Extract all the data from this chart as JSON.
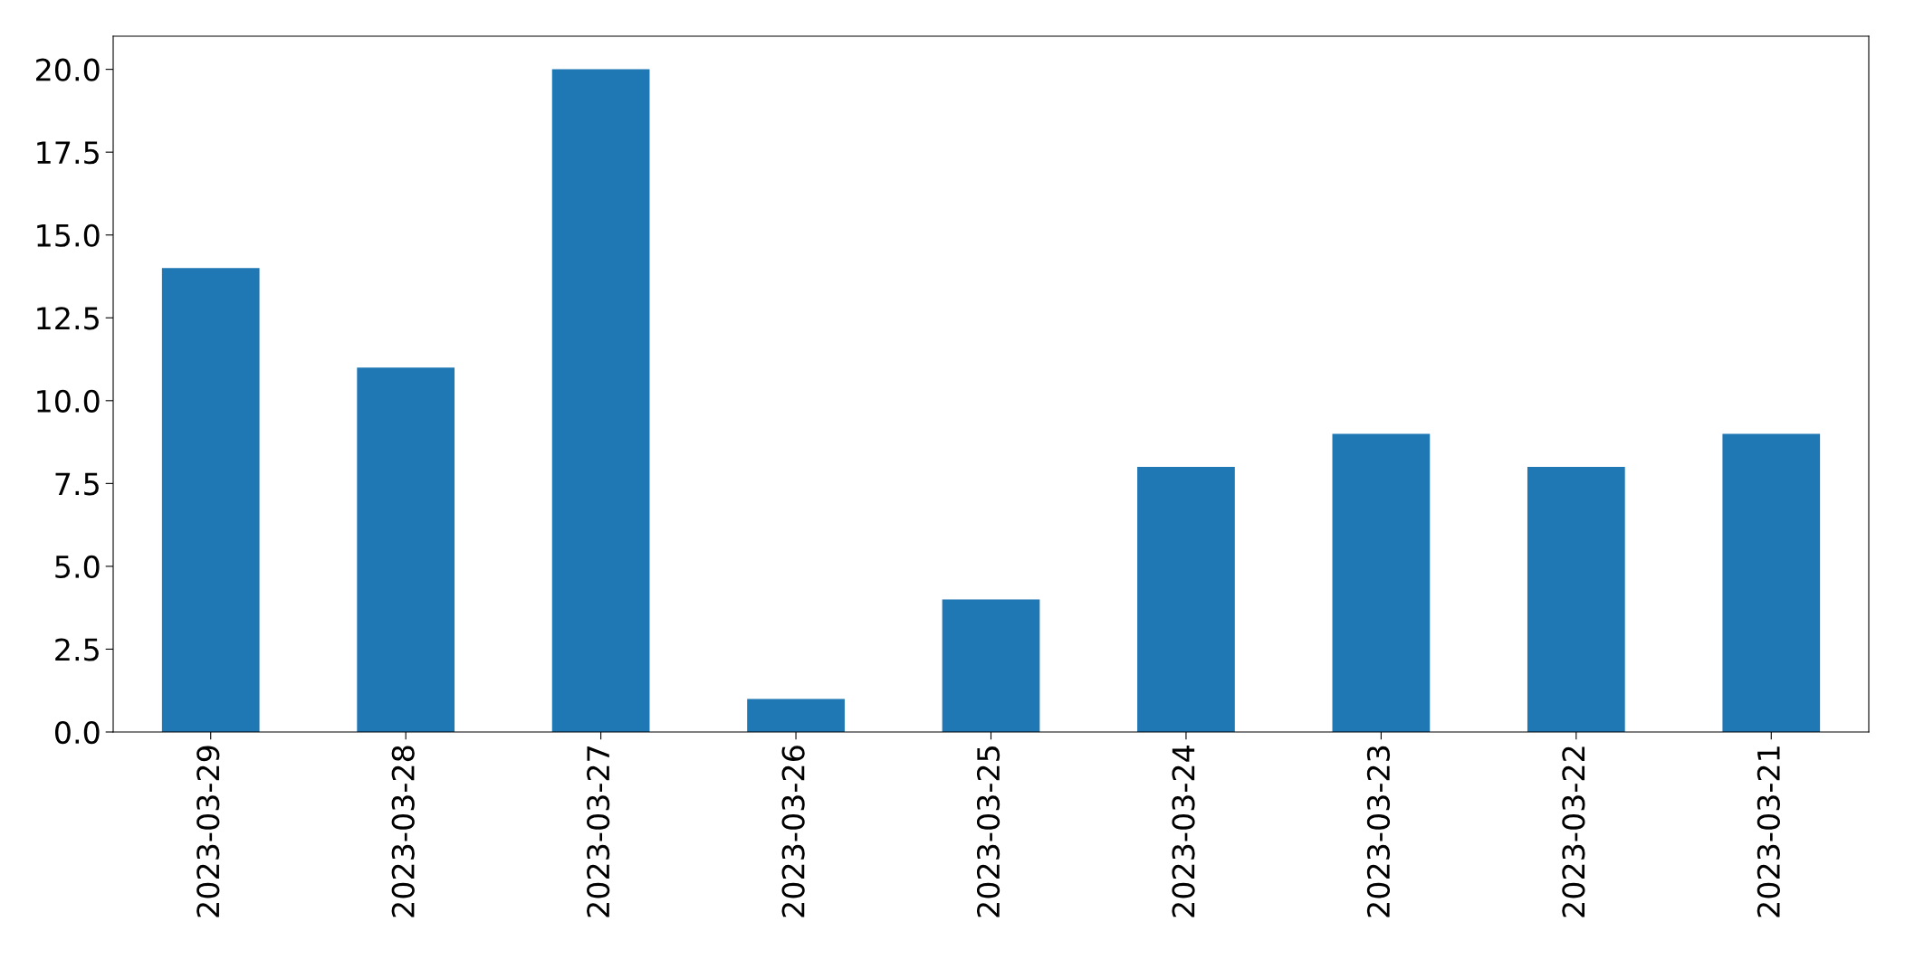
{
  "chart_data": {
    "type": "bar",
    "categories": [
      "2023-03-29",
      "2023-03-28",
      "2023-03-27",
      "2023-03-26",
      "2023-03-25",
      "2023-03-24",
      "2023-03-23",
      "2023-03-22",
      "2023-03-21"
    ],
    "values": [
      14,
      11,
      20,
      1,
      4,
      8,
      9,
      8,
      9
    ],
    "color": "#1f77b4",
    "ylim": [
      0,
      21
    ],
    "yticks": [
      {
        "value": 0,
        "label": "0.0"
      },
      {
        "value": 2.5,
        "label": "2.5"
      },
      {
        "value": 5,
        "label": "5.0"
      },
      {
        "value": 7.5,
        "label": "7.5"
      },
      {
        "value": 10,
        "label": "10.0"
      },
      {
        "value": 12.5,
        "label": "12.5"
      },
      {
        "value": 15,
        "label": "15.0"
      },
      {
        "value": 17.5,
        "label": "17.5"
      },
      {
        "value": 20,
        "label": "20.0"
      }
    ],
    "grid": false
  }
}
